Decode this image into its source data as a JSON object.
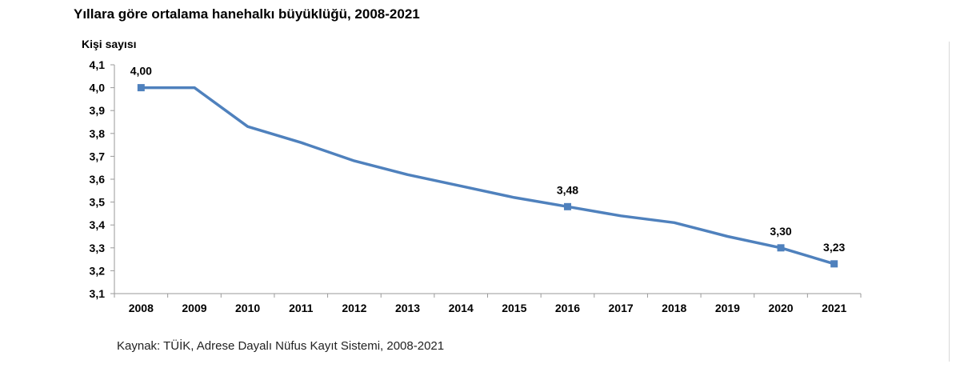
{
  "chart_data": {
    "type": "line",
    "title": "Yıllara göre ortalama hanehalkı büyüklüğü, 2008-2021",
    "ylabel": "Kişi sayısı",
    "xlabel": "",
    "source": "Kaynak: TÜİK, Adrese Dayalı Nüfus Kayıt Sistemi, 2008-2021",
    "categories": [
      "2008",
      "2009",
      "2010",
      "2011",
      "2012",
      "2013",
      "2014",
      "2015",
      "2016",
      "2017",
      "2018",
      "2019",
      "2020",
      "2021"
    ],
    "series": [
      {
        "values": [
          4.0,
          4.0,
          3.83,
          3.76,
          3.68,
          3.62,
          3.57,
          3.52,
          3.48,
          3.44,
          3.41,
          3.35,
          3.3,
          3.23
        ],
        "color": "#4f81bd"
      }
    ],
    "data_labels": [
      {
        "index": 0,
        "text": "4,00"
      },
      {
        "index": 8,
        "text": "3,48"
      },
      {
        "index": 12,
        "text": "3,30"
      },
      {
        "index": 13,
        "text": "3,23"
      }
    ],
    "y_ticks": [
      {
        "value": 3.1,
        "label": "3,1"
      },
      {
        "value": 3.2,
        "label": "3,2"
      },
      {
        "value": 3.3,
        "label": "3,3"
      },
      {
        "value": 3.4,
        "label": "3,4"
      },
      {
        "value": 3.5,
        "label": "3,5"
      },
      {
        "value": 3.6,
        "label": "3,6"
      },
      {
        "value": 3.7,
        "label": "3,7"
      },
      {
        "value": 3.8,
        "label": "3,8"
      },
      {
        "value": 3.9,
        "label": "3,9"
      },
      {
        "value": 4.0,
        "label": "4,0"
      },
      {
        "value": 4.1,
        "label": "4,1"
      }
    ],
    "ylim": [
      3.1,
      4.1
    ],
    "grid": false,
    "legend": "none"
  }
}
